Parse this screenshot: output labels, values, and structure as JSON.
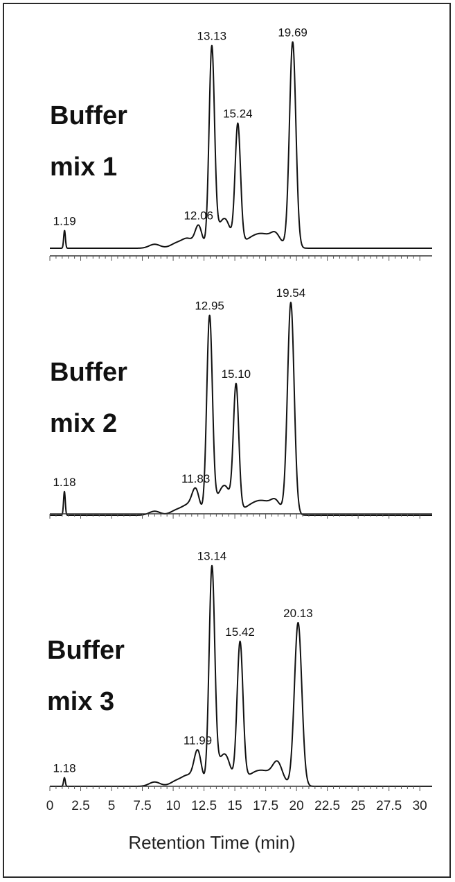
{
  "chart_data": {
    "type": "line",
    "xlabel": "Retention Time (min)",
    "x_ticks": [
      "0",
      "2.5",
      "5",
      "7.5",
      "10",
      "12.5",
      "15",
      "17.5",
      "20",
      "22.5",
      "25",
      "27.5",
      "30"
    ],
    "xlim": [
      0,
      31
    ],
    "panels": [
      {
        "name": "Buffer mix 1",
        "label_lines": [
          "Buffer",
          "mix 1"
        ],
        "peaks": [
          {
            "rt": 1.19,
            "label": "1.19",
            "height": 0.09,
            "width": 0.07
          },
          {
            "rt": 12.06,
            "label": "12.06",
            "height": 0.11,
            "width": 0.28
          },
          {
            "rt": 13.13,
            "label": "13.13",
            "height": 1.0,
            "width": 0.22
          },
          {
            "rt": 15.24,
            "label": "15.24",
            "height": 0.61,
            "width": 0.22
          },
          {
            "rt": 19.69,
            "label": "19.69",
            "height": 1.04,
            "width": 0.26
          }
        ]
      },
      {
        "name": "Buffer mix 2",
        "label_lines": [
          "Buffer",
          "mix 2"
        ],
        "peaks": [
          {
            "rt": 1.18,
            "label": "1.18",
            "height": 0.12,
            "width": 0.07
          },
          {
            "rt": 11.83,
            "label": "11.83",
            "height": 0.12,
            "width": 0.3
          },
          {
            "rt": 12.95,
            "label": "12.95",
            "height": 1.0,
            "width": 0.23
          },
          {
            "rt": 15.1,
            "label": "15.10",
            "height": 0.64,
            "width": 0.22
          },
          {
            "rt": 19.54,
            "label": "19.54",
            "height": 1.07,
            "width": 0.27
          }
        ]
      },
      {
        "name": "Buffer mix 3",
        "label_lines": [
          "Buffer",
          "mix 3"
        ],
        "peaks": [
          {
            "rt": 1.18,
            "label": "1.18",
            "height": 0.04,
            "width": 0.07
          },
          {
            "rt": 11.99,
            "label": "11.99",
            "height": 0.16,
            "width": 0.3
          },
          {
            "rt": 13.14,
            "label": "13.14",
            "height": 1.0,
            "width": 0.23
          },
          {
            "rt": 15.42,
            "label": "15.42",
            "height": 0.65,
            "width": 0.24
          },
          {
            "rt": 20.13,
            "label": "20.13",
            "height": 0.76,
            "width": 0.3
          }
        ]
      }
    ]
  }
}
